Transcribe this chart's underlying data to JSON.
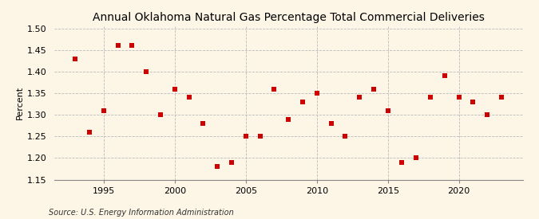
{
  "title": "Annual Oklahoma Natural Gas Percentage Total Commercial Deliveries",
  "ylabel": "Percent",
  "source": "Source: U.S. Energy Information Administration",
  "years": [
    1993,
    1994,
    1995,
    1996,
    1997,
    1998,
    1999,
    2000,
    2001,
    2002,
    2003,
    2004,
    2005,
    2006,
    2007,
    2008,
    2009,
    2010,
    2011,
    2012,
    2013,
    2014,
    2015,
    2016,
    2017,
    2018,
    2019,
    2020,
    2021,
    2022,
    2023
  ],
  "values": [
    1.43,
    1.26,
    1.31,
    1.46,
    1.46,
    1.4,
    1.3,
    1.36,
    1.34,
    1.28,
    1.18,
    1.19,
    1.25,
    1.25,
    1.36,
    1.29,
    1.33,
    1.35,
    1.28,
    1.25,
    1.34,
    1.36,
    1.31,
    1.19,
    1.2,
    1.34,
    1.39,
    1.34,
    1.33,
    1.3,
    1.34
  ],
  "ylim": [
    1.15,
    1.505
  ],
  "yticks": [
    1.15,
    1.2,
    1.25,
    1.3,
    1.35,
    1.4,
    1.45,
    1.5
  ],
  "xlim": [
    1991.5,
    2024.5
  ],
  "xticks": [
    1995,
    2000,
    2005,
    2010,
    2015,
    2020
  ],
  "marker_color": "#cc0000",
  "marker": "s",
  "marker_size": 14,
  "grid_color": "#bbbbbb",
  "background_color": "#fdf5e6",
  "title_fontsize": 10,
  "axis_fontsize": 8,
  "tick_fontsize": 8,
  "source_fontsize": 7
}
